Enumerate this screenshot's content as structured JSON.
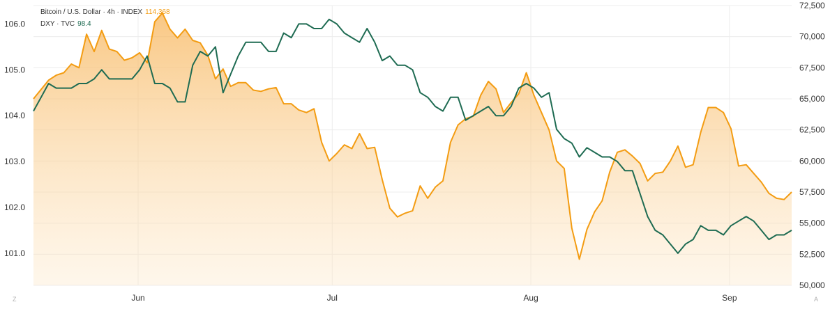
{
  "legend": {
    "btc_label": "Bitcoin / U.S. Dollar · 4h · INDEX",
    "btc_value": "114,368",
    "dxy_label": "DXY · TVC",
    "dxy_value": "98.4"
  },
  "corner_left": "Z",
  "corner_right": "A",
  "chart_data": {
    "type": "area",
    "title": "",
    "x_ticks": [
      "Jun",
      "Jul",
      "Aug",
      "Sep"
    ],
    "y_left": {
      "label": "",
      "ticks": [
        "101.0",
        "102.0",
        "103.0",
        "104.0",
        "105.0",
        "106.0"
      ],
      "range": [
        100.3,
        106.4
      ]
    },
    "y_right": {
      "label": "",
      "ticks": [
        "50,000",
        "52,500",
        "55,000",
        "57,500",
        "60,000",
        "62,500",
        "65,000",
        "67,500",
        "70,000",
        "72,500"
      ],
      "range": [
        50000,
        72500
      ]
    },
    "grid": true,
    "colors": {
      "btc": "#f39c12",
      "dxy": "#1e6b52",
      "fill_top": "#f7b55a",
      "grid": "#ececec"
    },
    "series": [
      {
        "name": "Bitcoin / U.S. Dollar · 4h · INDEX",
        "axis": "right",
        "style": "area",
        "color": "#f39c12",
        "points": [
          [
            0,
            65000
          ],
          [
            0.02,
            66500
          ],
          [
            0.03,
            66900
          ],
          [
            0.04,
            67100
          ],
          [
            0.05,
            67800
          ],
          [
            0.06,
            67500
          ],
          [
            0.07,
            70200
          ],
          [
            0.08,
            68800
          ],
          [
            0.09,
            70500
          ],
          [
            0.1,
            69000
          ],
          [
            0.11,
            68800
          ],
          [
            0.12,
            68100
          ],
          [
            0.13,
            68300
          ],
          [
            0.14,
            68700
          ],
          [
            0.15,
            67900
          ],
          [
            0.16,
            71200
          ],
          [
            0.17,
            71900
          ],
          [
            0.18,
            70600
          ],
          [
            0.19,
            69900
          ],
          [
            0.2,
            70600
          ],
          [
            0.21,
            69700
          ],
          [
            0.22,
            69500
          ],
          [
            0.23,
            68500
          ],
          [
            0.24,
            66600
          ],
          [
            0.25,
            67400
          ],
          [
            0.26,
            66000
          ],
          [
            0.27,
            66300
          ],
          [
            0.28,
            66300
          ],
          [
            0.29,
            65700
          ],
          [
            0.3,
            65600
          ],
          [
            0.31,
            65800
          ],
          [
            0.32,
            65900
          ],
          [
            0.33,
            64600
          ],
          [
            0.34,
            64600
          ],
          [
            0.35,
            64100
          ],
          [
            0.36,
            63900
          ],
          [
            0.37,
            64200
          ],
          [
            0.38,
            61500
          ],
          [
            0.39,
            60000
          ],
          [
            0.4,
            60600
          ],
          [
            0.41,
            61300
          ],
          [
            0.42,
            61000
          ],
          [
            0.43,
            62200
          ],
          [
            0.44,
            61000
          ],
          [
            0.45,
            61100
          ],
          [
            0.46,
            58500
          ],
          [
            0.47,
            56200
          ],
          [
            0.48,
            55500
          ],
          [
            0.49,
            55800
          ],
          [
            0.5,
            56000
          ],
          [
            0.51,
            58000
          ],
          [
            0.52,
            57000
          ],
          [
            0.53,
            57900
          ],
          [
            0.54,
            58400
          ],
          [
            0.55,
            61500
          ],
          [
            0.56,
            62900
          ],
          [
            0.57,
            63400
          ],
          [
            0.58,
            63600
          ],
          [
            0.59,
            65300
          ],
          [
            0.6,
            66400
          ],
          [
            0.61,
            65800
          ],
          [
            0.62,
            63900
          ],
          [
            0.63,
            64700
          ],
          [
            0.64,
            65400
          ],
          [
            0.65,
            67100
          ],
          [
            0.66,
            65300
          ],
          [
            0.67,
            63900
          ],
          [
            0.68,
            62500
          ],
          [
            0.69,
            60000
          ],
          [
            0.7,
            59400
          ],
          [
            0.71,
            54600
          ],
          [
            0.72,
            52100
          ],
          [
            0.73,
            54500
          ],
          [
            0.74,
            55900
          ],
          [
            0.75,
            56800
          ],
          [
            0.76,
            59100
          ],
          [
            0.77,
            60700
          ],
          [
            0.78,
            60900
          ],
          [
            0.79,
            60400
          ],
          [
            0.8,
            59800
          ],
          [
            0.81,
            58400
          ],
          [
            0.82,
            59000
          ],
          [
            0.83,
            59100
          ],
          [
            0.84,
            60000
          ],
          [
            0.85,
            61200
          ],
          [
            0.86,
            59500
          ],
          [
            0.87,
            59700
          ],
          [
            0.88,
            62300
          ],
          [
            0.89,
            64300
          ],
          [
            0.9,
            64300
          ],
          [
            0.91,
            63900
          ],
          [
            0.92,
            62600
          ],
          [
            0.93,
            59600
          ],
          [
            0.94,
            59700
          ],
          [
            0.95,
            59000
          ],
          [
            0.96,
            58300
          ],
          [
            0.97,
            57400
          ],
          [
            0.98,
            57000
          ],
          [
            0.99,
            56900
          ],
          [
            1.0,
            57500
          ]
        ]
      },
      {
        "name": "DXY · TVC",
        "axis": "left",
        "style": "line",
        "color": "#1e6b52",
        "points": [
          [
            0,
            104.1
          ],
          [
            0.01,
            104.4
          ],
          [
            0.02,
            104.7
          ],
          [
            0.03,
            104.6
          ],
          [
            0.04,
            104.6
          ],
          [
            0.05,
            104.6
          ],
          [
            0.06,
            104.7
          ],
          [
            0.07,
            104.7
          ],
          [
            0.08,
            104.8
          ],
          [
            0.09,
            105.0
          ],
          [
            0.1,
            104.8
          ],
          [
            0.11,
            104.8
          ],
          [
            0.12,
            104.8
          ],
          [
            0.13,
            104.8
          ],
          [
            0.14,
            105.0
          ],
          [
            0.15,
            105.3
          ],
          [
            0.16,
            104.7
          ],
          [
            0.17,
            104.7
          ],
          [
            0.18,
            104.6
          ],
          [
            0.19,
            104.3
          ],
          [
            0.2,
            104.3
          ],
          [
            0.21,
            105.1
          ],
          [
            0.22,
            105.4
          ],
          [
            0.23,
            105.3
          ],
          [
            0.24,
            105.5
          ],
          [
            0.25,
            104.5
          ],
          [
            0.26,
            104.9
          ],
          [
            0.27,
            105.3
          ],
          [
            0.28,
            105.6
          ],
          [
            0.29,
            105.6
          ],
          [
            0.3,
            105.6
          ],
          [
            0.31,
            105.4
          ],
          [
            0.32,
            105.4
          ],
          [
            0.33,
            105.8
          ],
          [
            0.34,
            105.7
          ],
          [
            0.35,
            106.0
          ],
          [
            0.36,
            106.0
          ],
          [
            0.37,
            105.9
          ],
          [
            0.38,
            105.9
          ],
          [
            0.39,
            106.1
          ],
          [
            0.4,
            106.0
          ],
          [
            0.41,
            105.8
          ],
          [
            0.42,
            105.7
          ],
          [
            0.43,
            105.6
          ],
          [
            0.44,
            105.9
          ],
          [
            0.45,
            105.6
          ],
          [
            0.46,
            105.2
          ],
          [
            0.47,
            105.3
          ],
          [
            0.48,
            105.1
          ],
          [
            0.49,
            105.1
          ],
          [
            0.5,
            105.0
          ],
          [
            0.51,
            104.5
          ],
          [
            0.52,
            104.4
          ],
          [
            0.53,
            104.2
          ],
          [
            0.54,
            104.1
          ],
          [
            0.55,
            104.4
          ],
          [
            0.56,
            104.4
          ],
          [
            0.57,
            103.9
          ],
          [
            0.58,
            104.0
          ],
          [
            0.59,
            104.1
          ],
          [
            0.6,
            104.2
          ],
          [
            0.61,
            104.0
          ],
          [
            0.62,
            104.0
          ],
          [
            0.63,
            104.2
          ],
          [
            0.64,
            104.6
          ],
          [
            0.65,
            104.7
          ],
          [
            0.66,
            104.6
          ],
          [
            0.67,
            104.4
          ],
          [
            0.68,
            104.5
          ],
          [
            0.69,
            103.7
          ],
          [
            0.7,
            103.5
          ],
          [
            0.71,
            103.4
          ],
          [
            0.72,
            103.1
          ],
          [
            0.73,
            103.3
          ],
          [
            0.74,
            103.2
          ],
          [
            0.75,
            103.1
          ],
          [
            0.76,
            103.1
          ],
          [
            0.77,
            103.0
          ],
          [
            0.78,
            102.8
          ],
          [
            0.79,
            102.8
          ],
          [
            0.8,
            102.3
          ],
          [
            0.81,
            101.8
          ],
          [
            0.82,
            101.5
          ],
          [
            0.83,
            101.4
          ],
          [
            0.84,
            101.2
          ],
          [
            0.85,
            101.0
          ],
          [
            0.86,
            101.2
          ],
          [
            0.87,
            101.3
          ],
          [
            0.88,
            101.6
          ],
          [
            0.89,
            101.5
          ],
          [
            0.9,
            101.5
          ],
          [
            0.91,
            101.4
          ],
          [
            0.92,
            101.6
          ],
          [
            0.93,
            101.7
          ],
          [
            0.94,
            101.8
          ],
          [
            0.95,
            101.7
          ],
          [
            0.96,
            101.5
          ],
          [
            0.97,
            101.3
          ],
          [
            0.98,
            101.4
          ],
          [
            0.99,
            101.4
          ],
          [
            1.0,
            101.5
          ]
        ]
      }
    ]
  }
}
